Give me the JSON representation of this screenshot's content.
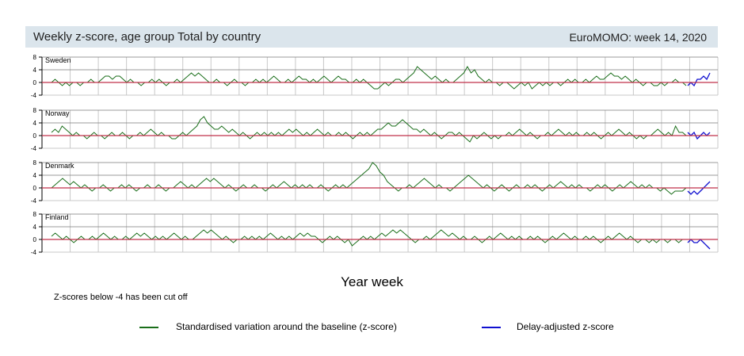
{
  "header": {
    "title": "Weekly z-score, age group Total by country",
    "week": "EuroMOMO: week 14, 2020"
  },
  "footer": {
    "xlabel": "Year week",
    "note": "Z-scores below -4 has been cut off"
  },
  "legend": [
    {
      "label": "Standardised variation around the baseline (z-score)",
      "color": "#1a6e1a"
    },
    {
      "label": "Delay-adjusted z-score",
      "color": "#1010d0"
    }
  ],
  "colors": {
    "zscore": "#1a6e1a",
    "delay_adjusted": "#1010d0",
    "baseline": "#c0304a",
    "grid": "#c8c8c8"
  },
  "chart_data": [
    {
      "type": "line",
      "title": "Sweden",
      "ylim": [
        -4,
        8
      ],
      "yticks": [
        "8",
        "4",
        "0",
        "-4"
      ],
      "grid": true,
      "series": [
        {
          "name": "Standardised variation around the baseline (z-score)",
          "values": [
            0,
            1,
            0,
            -1,
            0,
            -1,
            0,
            0,
            -1,
            0,
            0,
            1,
            0,
            0,
            1,
            2,
            2,
            1,
            2,
            2,
            1,
            0,
            1,
            0,
            0,
            -1,
            0,
            0,
            1,
            0,
            1,
            0,
            -1,
            0,
            0,
            1,
            0,
            1,
            2,
            3,
            2,
            3,
            2,
            1,
            0,
            0,
            1,
            0,
            0,
            -1,
            0,
            1,
            0,
            0,
            -1,
            0,
            0,
            1,
            0,
            1,
            0,
            1,
            2,
            1,
            0,
            0,
            1,
            0,
            1,
            2,
            1,
            1,
            0,
            1,
            0,
            1,
            2,
            1,
            0,
            1,
            2,
            1,
            1,
            0,
            0,
            1,
            0,
            1,
            0,
            -1,
            -2,
            -2,
            -1,
            0,
            -1,
            0,
            1,
            1,
            0,
            1,
            2,
            3,
            5,
            4,
            3,
            2,
            1,
            2,
            1,
            0,
            1,
            0,
            0,
            1,
            2,
            3,
            5,
            3,
            4,
            2,
            1,
            0,
            1,
            0,
            0,
            -1,
            0,
            0,
            -1,
            -2,
            -1,
            0,
            -1,
            0,
            -2,
            -1,
            0,
            -1,
            0,
            -1,
            0,
            0,
            -1,
            0,
            1,
            0,
            1,
            0,
            0,
            1,
            0,
            1,
            2,
            1,
            1,
            2,
            3,
            2,
            2,
            1,
            2,
            1,
            0,
            1,
            0,
            -1,
            0,
            0,
            -1,
            -1,
            0,
            -1,
            0,
            0,
            1,
            0,
            0,
            -1
          ]
        },
        {
          "name": "Delay-adjusted z-score",
          "values": [
            -1,
            0,
            -1,
            1,
            1,
            2,
            1,
            3
          ]
        }
      ]
    },
    {
      "type": "line",
      "title": "Norway",
      "ylim": [
        -4,
        8
      ],
      "yticks": [
        "8",
        "4",
        "0",
        "-4"
      ],
      "grid": true,
      "series": [
        {
          "name": "Standardised variation around the baseline (z-score)",
          "values": [
            1,
            2,
            1,
            3,
            2,
            1,
            0,
            1,
            0,
            0,
            -1,
            0,
            1,
            0,
            0,
            -1,
            0,
            1,
            0,
            0,
            1,
            0,
            -1,
            0,
            0,
            1,
            0,
            1,
            2,
            1,
            0,
            1,
            0,
            0,
            -1,
            -1,
            0,
            1,
            0,
            1,
            2,
            3,
            5,
            6,
            4,
            3,
            2,
            2,
            3,
            2,
            1,
            2,
            1,
            0,
            1,
            0,
            -1,
            0,
            1,
            0,
            1,
            0,
            1,
            0,
            1,
            0,
            1,
            2,
            1,
            2,
            1,
            0,
            1,
            0,
            1,
            2,
            1,
            0,
            1,
            0,
            0,
            1,
            0,
            1,
            0,
            -1,
            0,
            1,
            0,
            1,
            0,
            1,
            2,
            2,
            3,
            4,
            3,
            3,
            4,
            5,
            4,
            3,
            2,
            2,
            1,
            2,
            1,
            0,
            1,
            0,
            -1,
            0,
            1,
            1,
            0,
            1,
            0,
            -1,
            -2,
            0,
            -1,
            0,
            1,
            0,
            -1,
            0,
            -1,
            0,
            0,
            1,
            0,
            1,
            2,
            1,
            0,
            1,
            0,
            -1,
            0,
            0,
            1,
            0,
            1,
            2,
            1,
            0,
            1,
            0,
            1,
            0,
            0,
            1,
            0,
            1,
            0,
            -1,
            0,
            1,
            0,
            1,
            2,
            1,
            0,
            1,
            0,
            -1,
            0,
            -1,
            0,
            0,
            1,
            2,
            1,
            0,
            1,
            0,
            3,
            1,
            1,
            0
          ]
        },
        {
          "name": "Delay-adjusted z-score",
          "values": [
            1,
            0,
            1,
            -1,
            0,
            1,
            0,
            1
          ]
        }
      ]
    },
    {
      "type": "line",
      "title": "Denmark",
      "ylim": [
        -4,
        8
      ],
      "yticks": [
        "8",
        "4",
        "0",
        "-4"
      ],
      "grid": true,
      "series": [
        {
          "name": "Standardised variation around the baseline (z-score)",
          "values": [
            0,
            1,
            2,
            3,
            2,
            1,
            2,
            1,
            0,
            1,
            0,
            -1,
            0,
            0,
            1,
            0,
            -1,
            0,
            0,
            1,
            0,
            1,
            0,
            -1,
            0,
            0,
            1,
            0,
            0,
            1,
            0,
            -1,
            0,
            0,
            1,
            2,
            1,
            0,
            1,
            0,
            1,
            2,
            3,
            2,
            3,
            2,
            1,
            0,
            1,
            0,
            -1,
            0,
            1,
            0,
            0,
            1,
            0,
            0,
            -1,
            0,
            1,
            0,
            1,
            2,
            1,
            0,
            1,
            0,
            1,
            0,
            1,
            0,
            0,
            1,
            0,
            -1,
            0,
            1,
            0,
            1,
            0,
            1,
            2,
            3,
            4,
            5,
            6,
            8,
            7,
            5,
            4,
            2,
            1,
            0,
            -1,
            0,
            0,
            1,
            0,
            1,
            2,
            3,
            2,
            1,
            0,
            1,
            0,
            0,
            -1,
            0,
            1,
            2,
            3,
            4,
            3,
            2,
            1,
            0,
            1,
            0,
            -1,
            0,
            1,
            0,
            -1,
            0,
            1,
            0,
            0,
            1,
            0,
            1,
            0,
            -1,
            0,
            1,
            0,
            1,
            2,
            1,
            0,
            1,
            0,
            1,
            0,
            0,
            -1,
            0,
            1,
            0,
            1,
            0,
            -1,
            0,
            1,
            0,
            1,
            2,
            1,
            0,
            1,
            0,
            1,
            0,
            0,
            -1,
            0,
            -1,
            -2,
            -1,
            -1,
            -1,
            0
          ]
        },
        {
          "name": "Delay-adjusted z-score",
          "values": [
            -1,
            -2,
            -1,
            -2,
            -1,
            0,
            1,
            2
          ]
        }
      ]
    },
    {
      "type": "line",
      "title": "Finland",
      "ylim": [
        -4,
        8
      ],
      "yticks": [
        "8",
        "4",
        "0",
        "-4"
      ],
      "grid": true,
      "series": [
        {
          "name": "Standardised variation around the baseline (z-score)",
          "values": [
            1,
            2,
            1,
            0,
            1,
            0,
            -1,
            0,
            1,
            0,
            0,
            1,
            0,
            1,
            2,
            1,
            0,
            1,
            0,
            0,
            1,
            0,
            1,
            2,
            1,
            2,
            1,
            0,
            1,
            0,
            1,
            0,
            1,
            2,
            1,
            0,
            1,
            0,
            0,
            1,
            2,
            3,
            2,
            3,
            2,
            1,
            0,
            1,
            0,
            -1,
            0,
            0,
            1,
            0,
            1,
            0,
            1,
            0,
            1,
            2,
            1,
            0,
            1,
            0,
            1,
            0,
            1,
            2,
            1,
            2,
            1,
            1,
            0,
            -1,
            0,
            1,
            0,
            1,
            0,
            -1,
            0,
            -2,
            -1,
            0,
            1,
            0,
            1,
            0,
            1,
            2,
            1,
            2,
            3,
            2,
            3,
            2,
            1,
            0,
            -1,
            0,
            0,
            1,
            0,
            1,
            2,
            3,
            2,
            1,
            2,
            1,
            0,
            1,
            0,
            0,
            1,
            0,
            -1,
            0,
            1,
            0,
            1,
            2,
            1,
            0,
            1,
            0,
            1,
            0,
            0,
            1,
            0,
            1,
            0,
            -1,
            0,
            1,
            0,
            1,
            2,
            1,
            0,
            1,
            0,
            0,
            1,
            0,
            1,
            0,
            -1,
            0,
            1,
            0,
            1,
            2,
            1,
            0,
            1,
            0,
            -1,
            0,
            0,
            -1,
            0,
            -1,
            0,
            0,
            -1,
            0,
            0,
            -1,
            0,
            0
          ]
        },
        {
          "name": "Delay-adjusted z-score",
          "values": [
            -1,
            0,
            -1,
            -1,
            0,
            -1,
            -2,
            -3
          ]
        }
      ]
    }
  ]
}
